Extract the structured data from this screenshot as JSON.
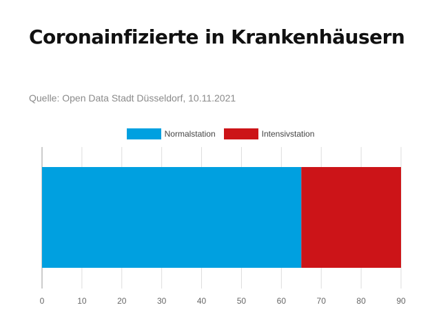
{
  "title": "Coronainfizierte in Krankenhäusern",
  "source": "Quelle: Open Data Stadt Düsseldorf, 10.11.2021",
  "colors": {
    "normal": "#00a0e0",
    "intensive": "#cc1418",
    "grid": "#dddddd",
    "axis": "#9a9a9a"
  },
  "chart_data": {
    "type": "bar",
    "orientation": "horizontal",
    "stacked": true,
    "categories": [
      ""
    ],
    "series": [
      {
        "name": "Normalstation",
        "values": [
          65
        ]
      },
      {
        "name": "Intensivstation",
        "values": [
          25
        ]
      }
    ],
    "xlim": [
      0,
      90
    ],
    "xticks": [
      "0",
      "10",
      "20",
      "30",
      "40",
      "50",
      "60",
      "70",
      "80",
      "90"
    ],
    "grid": true,
    "legend": "top-center"
  }
}
